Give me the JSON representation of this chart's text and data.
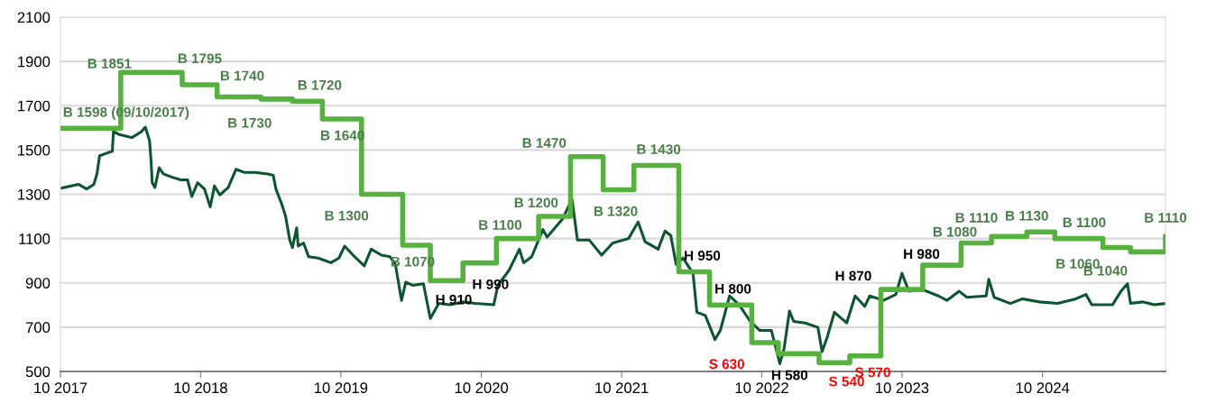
{
  "chart_data": {
    "type": "line",
    "xlim": [
      "2017-10-01",
      "2025-08-17"
    ],
    "xticks": [
      {
        "value": "2017-10-01",
        "label": "10 2017"
      },
      {
        "value": "2018-10-01",
        "label": "10 2018"
      },
      {
        "value": "2019-10-01",
        "label": "10 2019"
      },
      {
        "value": "2020-10-01",
        "label": "10 2020"
      },
      {
        "value": "2021-10-01",
        "label": "10 2021"
      },
      {
        "value": "2022-10-01",
        "label": "10 2022"
      },
      {
        "value": "2023-10-01",
        "label": "10 2023"
      },
      {
        "value": "2024-10-01",
        "label": "10 2024"
      }
    ],
    "ylim": [
      500,
      2100
    ],
    "yticks": [
      500,
      700,
      900,
      1100,
      1300,
      1500,
      1700,
      1900,
      2100
    ],
    "grid": "y",
    "series": [
      {
        "color": "#0d5430",
        "x": [
          "2017-10-01",
          "2017-11-17",
          "2017-12-08",
          "2017-12-27",
          "2018-01-04",
          "2018-01-11",
          "2018-02-02",
          "2018-02-13",
          "2018-02-16",
          "2018-03-03",
          "2018-03-21",
          "2018-04-05",
          "2018-04-30",
          "2018-05-10",
          "2018-05-21",
          "2018-05-25",
          "2018-05-28",
          "2018-06-04",
          "2018-06-15",
          "2018-06-26",
          "2018-07-16",
          "2018-08-10",
          "2018-08-28",
          "2018-09-08",
          "2018-09-23",
          "2018-10-11",
          "2018-10-26",
          "2018-11-06",
          "2018-11-20",
          "2018-12-12",
          "2019-01-01",
          "2019-01-22",
          "2019-02-20",
          "2019-03-25",
          "2019-04-08",
          "2019-04-15",
          "2019-04-30",
          "2019-05-10",
          "2019-05-21",
          "2019-05-28",
          "2019-06-08",
          "2019-06-12",
          "2019-06-26",
          "2019-07-09",
          "2019-08-03",
          "2019-09-05",
          "2019-09-26",
          "2019-10-11",
          "2019-11-02",
          "2019-12-01",
          "2019-12-19",
          "2020-01-15",
          "2020-02-06",
          "2020-02-20",
          "2020-03-07",
          "2020-03-18",
          "2020-04-05",
          "2020-05-03",
          "2020-05-21",
          "2020-06-12",
          "2020-07-12",
          "2020-08-14",
          "2020-09-15",
          "2020-11-02",
          "2020-11-13",
          "2020-12-12",
          "2021-01-08",
          "2021-01-19",
          "2021-02-09",
          "2021-03-10",
          "2021-03-21",
          "2021-04-30",
          "2021-05-25",
          "2021-06-08",
          "2021-07-09",
          "2021-08-10",
          "2021-09-08",
          "2021-10-19",
          "2021-11-13",
          "2021-12-01",
          "2022-01-04",
          "2022-01-22",
          "2022-02-06",
          "2022-02-20",
          "2022-03-10",
          "2022-04-05",
          "2022-04-15",
          "2022-05-07",
          "2022-06-01",
          "2022-06-15",
          "2022-07-09",
          "2022-08-03",
          "2022-09-01",
          "2022-09-26",
          "2022-10-26",
          "2022-11-17",
          "2022-11-28",
          "2022-12-12",
          "2022-12-23",
          "2023-01-22",
          "2023-02-24",
          "2023-03-07",
          "2023-03-21",
          "2023-04-08",
          "2023-05-10",
          "2023-06-01",
          "2023-06-26",
          "2023-07-09",
          "2023-08-14",
          "2023-09-15",
          "2023-10-01",
          "2023-10-19",
          "2023-11-24",
          "2024-01-04",
          "2024-01-26",
          "2024-02-27",
          "2024-03-18",
          "2024-05-07",
          "2024-05-14",
          "2024-05-28",
          "2024-07-09",
          "2024-08-10",
          "2024-09-23",
          "2024-11-09",
          "2024-12-27",
          "2025-01-22",
          "2025-02-06",
          "2025-04-01",
          "2025-04-23",
          "2025-05-10",
          "2025-05-18",
          "2025-06-19",
          "2025-07-19",
          "2025-08-17"
        ],
        "values": [
          1327,
          1345,
          1324,
          1345,
          1392,
          1474,
          1488,
          1494,
          1583,
          1570,
          1563,
          1556,
          1583,
          1603,
          1542,
          1447,
          1352,
          1331,
          1420,
          1392,
          1379,
          1365,
          1365,
          1290,
          1352,
          1324,
          1243,
          1338,
          1297,
          1331,
          1413,
          1399,
          1399,
          1392,
          1386,
          1324,
          1256,
          1202,
          1093,
          1059,
          1148,
          1066,
          1080,
          1018,
          1012,
          991,
          1012,
          1066,
          1025,
          977,
          1052,
          1025,
          1018,
          984,
          821,
          903,
          889,
          896,
          739,
          807,
          801,
          814,
          807,
          801,
          889,
          957,
          1052,
          991,
          1018,
          1141,
          1107,
          1188,
          1277,
          1093,
          1093,
          1025,
          1080,
          1100,
          1175,
          1086,
          1052,
          1134,
          1114,
          984,
          1012,
          943,
          767,
          753,
          644,
          685,
          841,
          801,
          726,
          685,
          685,
          535,
          603,
          773,
          726,
          719,
          699,
          590,
          658,
          767,
          719,
          841,
          794,
          841,
          821,
          848,
          943,
          862,
          869,
          841,
          821,
          862,
          835,
          841,
          916,
          835,
          807,
          828,
          814,
          807,
          828,
          848,
          801,
          801,
          862,
          896,
          807,
          814,
          801,
          807
        ]
      },
      {
        "type": "step",
        "color": "#56b13f",
        "x": [
          "2017-10-01",
          "2018-03-07",
          "2018-08-14",
          "2018-11-13",
          "2019-03-07",
          "2019-05-28",
          "2019-08-14",
          "2019-11-24",
          "2020-03-10",
          "2020-05-21",
          "2020-08-14",
          "2020-11-09",
          "2021-02-27",
          "2021-05-21",
          "2021-08-14",
          "2021-11-02",
          "2022-02-27",
          "2022-05-18",
          "2022-09-05",
          "2022-11-13",
          "2023-02-27",
          "2023-05-18",
          "2023-08-07",
          "2023-11-24",
          "2024-03-03",
          "2024-05-21",
          "2024-08-21",
          "2024-11-02",
          "2025-03-07",
          "2025-05-18",
          "2025-08-17"
        ],
        "values": [
          1598,
          1851,
          1795,
          1740,
          1730,
          1720,
          1640,
          1300,
          1070,
          910,
          990,
          1100,
          1200,
          1470,
          1320,
          1430,
          950,
          800,
          630,
          580,
          540,
          570,
          870,
          980,
          1080,
          1110,
          1130,
          1100,
          1060,
          1040,
          1110
        ],
        "value_labels": [
          "B 1598 (09/10/2017)",
          "B 1851",
          "B 1795",
          "B 1740",
          "B 1730",
          "B 1720",
          "B 1640",
          "B 1300",
          "B 1070",
          "H 910",
          "H 990",
          "B 1100",
          "B 1200",
          "B 1470",
          "B 1320",
          "B 1430",
          "H 950",
          "H 800",
          "S 630",
          "H 580",
          "S 540",
          "S 570",
          "H 870",
          "H 980",
          "B 1080",
          "B 1110",
          "B 1130",
          "B 1100",
          "B 1060",
          "B 1040",
          "B 1110"
        ],
        "colors": [
          "#4a7f4a",
          "#4a7f4a",
          "#4a7f4a",
          "#4a7f4a",
          "#4a7f4a",
          "#4a7f4a",
          "#4a7f4a",
          "#4a7f4a",
          "#4a7f4a",
          "#000000",
          "#000000",
          "#4a7f4a",
          "#4a7f4a",
          "#4a7f4a",
          "#4a7f4a",
          "#4a7f4a",
          "#000000",
          "#000000",
          "#ff0000",
          "#000000",
          "#ff0000",
          "#ff0000",
          "#000000",
          "#000000",
          "#4a7f4a",
          "#4a7f4a",
          "#4a7f4a",
          "#4a7f4a",
          "#4a7f4a",
          "#4a7f4a",
          "#4a7f4a"
        ]
      }
    ]
  }
}
